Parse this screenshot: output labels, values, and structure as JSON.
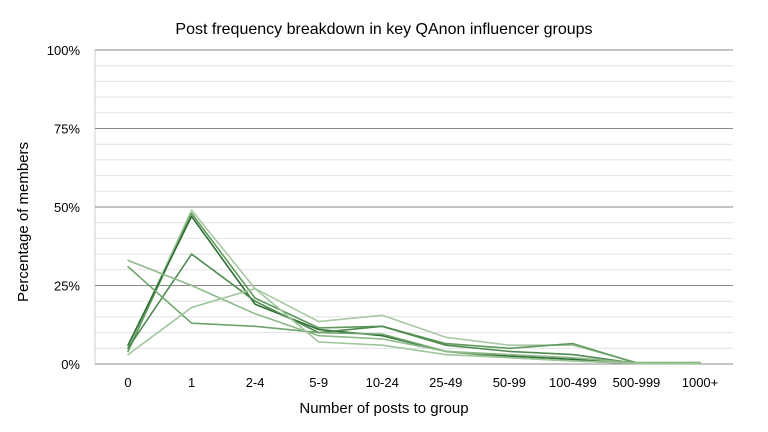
{
  "chart_data": {
    "type": "line",
    "title": "Post frequency breakdown in key QAnon influencer groups",
    "xlabel": "Number of posts to group",
    "ylabel": "Percentage of members",
    "categories": [
      "0",
      "1",
      "2-4",
      "5-9",
      "10-24",
      "25-49",
      "50-99",
      "100-499",
      "500-999",
      "1000+"
    ],
    "y_ticks": [
      "0%",
      "25%",
      "50%",
      "75%",
      "100%"
    ],
    "ylim": [
      0,
      100
    ],
    "minor_grid_step": 5,
    "grid": true,
    "legend": "none",
    "series": [
      {
        "values": [
          5,
          49,
          24,
          13.5,
          15.5,
          8.5,
          6,
          6,
          0.5,
          0.5
        ],
        "color": "#a9c8a3"
      },
      {
        "values": [
          4,
          48,
          21,
          11.5,
          12,
          6.5,
          5,
          6.5,
          0.3,
          0.4
        ],
        "color": "#5f9a5c"
      },
      {
        "values": [
          6,
          47,
          19,
          11,
          9,
          4,
          2.5,
          1.5,
          0.3,
          0.2
        ],
        "color": "#2f6f35"
      },
      {
        "values": [
          5,
          35,
          20,
          10,
          12,
          6,
          4,
          3,
          0.2,
          0.2
        ],
        "color": "#4f8a4f"
      },
      {
        "values": [
          31,
          13,
          12,
          10,
          9.5,
          4,
          2,
          1,
          0.2,
          0.2
        ],
        "color": "#6fa56d"
      },
      {
        "values": [
          33,
          25,
          16,
          9,
          8,
          4,
          3,
          2,
          0.3,
          0.3
        ],
        "color": "#8fb98b"
      },
      {
        "values": [
          3,
          18,
          24,
          7,
          6,
          3,
          2,
          1,
          0.2,
          0.2
        ],
        "color": "#9fc69b"
      }
    ]
  }
}
